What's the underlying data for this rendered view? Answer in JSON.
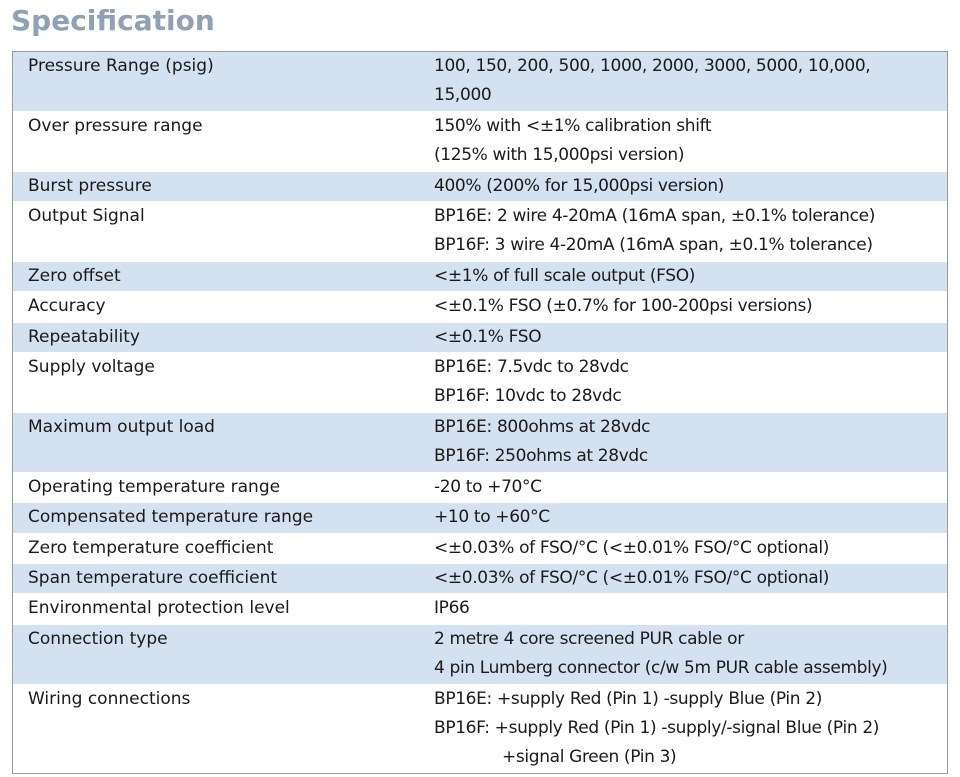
{
  "title": "Specification",
  "rows": [
    {
      "label": "Pressure Range (psig)",
      "shaded": true,
      "lines": [
        "100, 150, 200, 500, 1000, 2000, 3000, 5000, 10,000,",
        "15,000"
      ]
    },
    {
      "label": "Over pressure range",
      "shaded": false,
      "lines": [
        "150% with <±1% calibration shift",
        "(125% with 15,000psi version)"
      ]
    },
    {
      "label": "Burst pressure",
      "shaded": true,
      "lines": [
        "400% (200% for 15,000psi version)"
      ]
    },
    {
      "label": "Output Signal",
      "shaded": false,
      "lines": [
        "BP16E: 2 wire 4-20mA (16mA span, ±0.1% tolerance)",
        "BP16F: 3 wire 4-20mA (16mA span, ±0.1% tolerance)"
      ]
    },
    {
      "label": "Zero offset",
      "shaded": true,
      "lines": [
        "<±1% of full scale output (FSO)"
      ]
    },
    {
      "label": "Accuracy",
      "shaded": false,
      "lines": [
        "<±0.1% FSO (±0.7% for 100-200psi versions)"
      ]
    },
    {
      "label": "Repeatability",
      "shaded": true,
      "lines": [
        "<±0.1% FSO"
      ]
    },
    {
      "label": "Supply voltage",
      "shaded": false,
      "lines": [
        "BP16E: 7.5vdc to 28vdc",
        "BP16F: 10vdc to 28vdc"
      ]
    },
    {
      "label": "Maximum output load",
      "shaded": true,
      "lines": [
        "BP16E: 800ohms at 28vdc",
        "BP16F: 250ohms at 28vdc"
      ]
    },
    {
      "label": "Operating temperature range",
      "shaded": false,
      "lines": [
        "-20 to +70°C"
      ]
    },
    {
      "label": "Compensated temperature range",
      "shaded": true,
      "lines": [
        "+10 to +60°C"
      ]
    },
    {
      "label": "Zero temperature coefficient",
      "shaded": false,
      "lines": [
        "<±0.03% of FSO/°C (<±0.01% FSO/°C optional)"
      ]
    },
    {
      "label": "Span temperature coefficient",
      "shaded": true,
      "lines": [
        "<±0.03% of FSO/°C (<±0.01% FSO/°C optional)"
      ]
    },
    {
      "label": "Environmental protection level",
      "shaded": false,
      "lines": [
        "IP66"
      ]
    },
    {
      "label": "Connection type",
      "shaded": true,
      "lines": [
        "2 metre 4 core screened PUR cable or",
        "4 pin Lumberg connector (c/w 5m PUR cable assembly)"
      ]
    },
    {
      "label": "Wiring connections",
      "shaded": false,
      "lines": [
        "BP16E: +supply Red (Pin 1)  -supply Blue (Pin 2)",
        "BP16F: +supply Red (Pin 1)  -supply/-signal Blue (Pin 2)",
        "+signal Green (Pin 3)"
      ],
      "indented_lines": [
        2
      ]
    }
  ]
}
